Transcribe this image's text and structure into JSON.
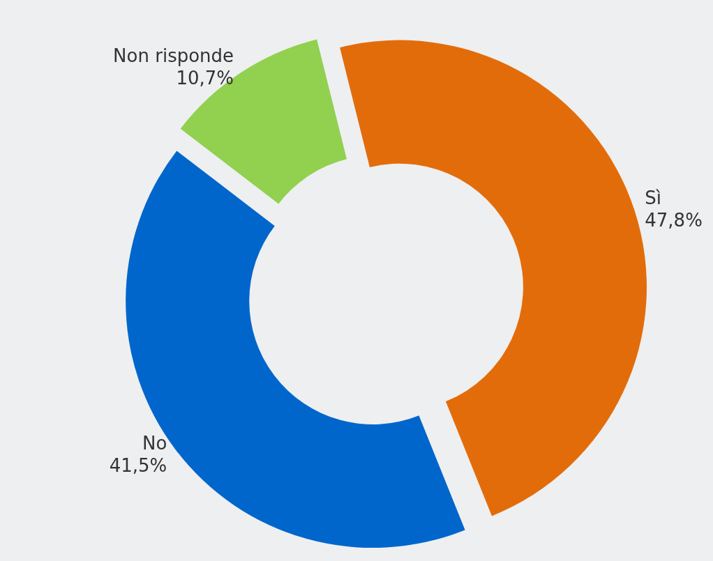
{
  "chart_data": {
    "type": "donut",
    "categories": [
      "Sì",
      "No",
      "Non risponde"
    ],
    "values": [
      47.8,
      41.5,
      10.7
    ],
    "value_labels": [
      "47,8%",
      "41,5%",
      "10,7%"
    ],
    "colors": [
      "#e36c0a",
      "#0066cc",
      "#92d050"
    ],
    "legend": false
  }
}
